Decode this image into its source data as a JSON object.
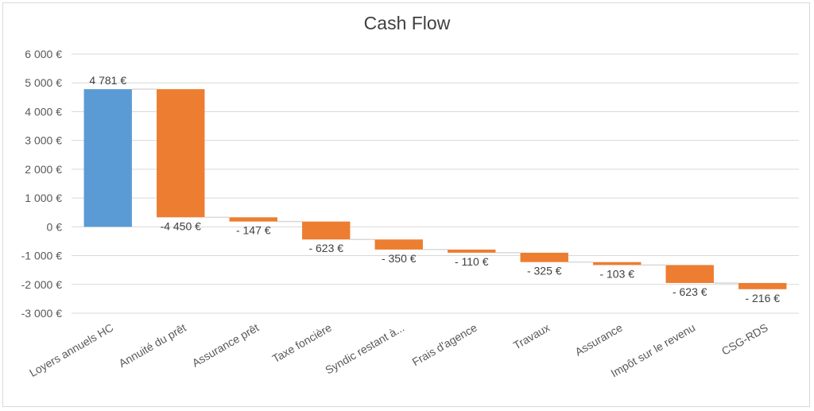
{
  "chart_data": {
    "type": "bar",
    "subtype": "waterfall",
    "title": "Cash Flow",
    "xlabel": "",
    "ylabel": "",
    "ylim": [
      -3000,
      6000
    ],
    "y_ticks": [
      6000,
      5000,
      4000,
      3000,
      2000,
      1000,
      0,
      -1000,
      -2000,
      -3000
    ],
    "y_tick_labels": [
      "6 000 €",
      "5 000 €",
      "4 000 €",
      "3 000 €",
      "2 000 €",
      "1 000 €",
      "0 €",
      "-1 000 €",
      "-2 000 €",
      "-3 000 €"
    ],
    "categories": [
      "Loyers annuels HC",
      "Annuité du prêt",
      "Assurance prêt",
      "Taxe foncière",
      "Syndic restant à...",
      "Frais d'agence",
      "Travaux",
      "Assurance",
      "Impôt sur le revenu",
      "CSG-RDS"
    ],
    "values": [
      4781,
      -4450,
      -147,
      -623,
      -350,
      -110,
      -325,
      -103,
      -623,
      -216
    ],
    "data_labels": [
      "4 781 €",
      "-4 450 €",
      "- 147 €",
      "- 623 €",
      "- 350 €",
      "- 110 €",
      "- 325 €",
      "- 103 €",
      "- 623 €",
      "- 216 €"
    ],
    "grid": true,
    "legend": "none",
    "colors": {
      "increase": "#5b9bd5",
      "decrease": "#ed7d31",
      "grid": "#d9d9d9",
      "connector": "#d9d9d9"
    }
  }
}
